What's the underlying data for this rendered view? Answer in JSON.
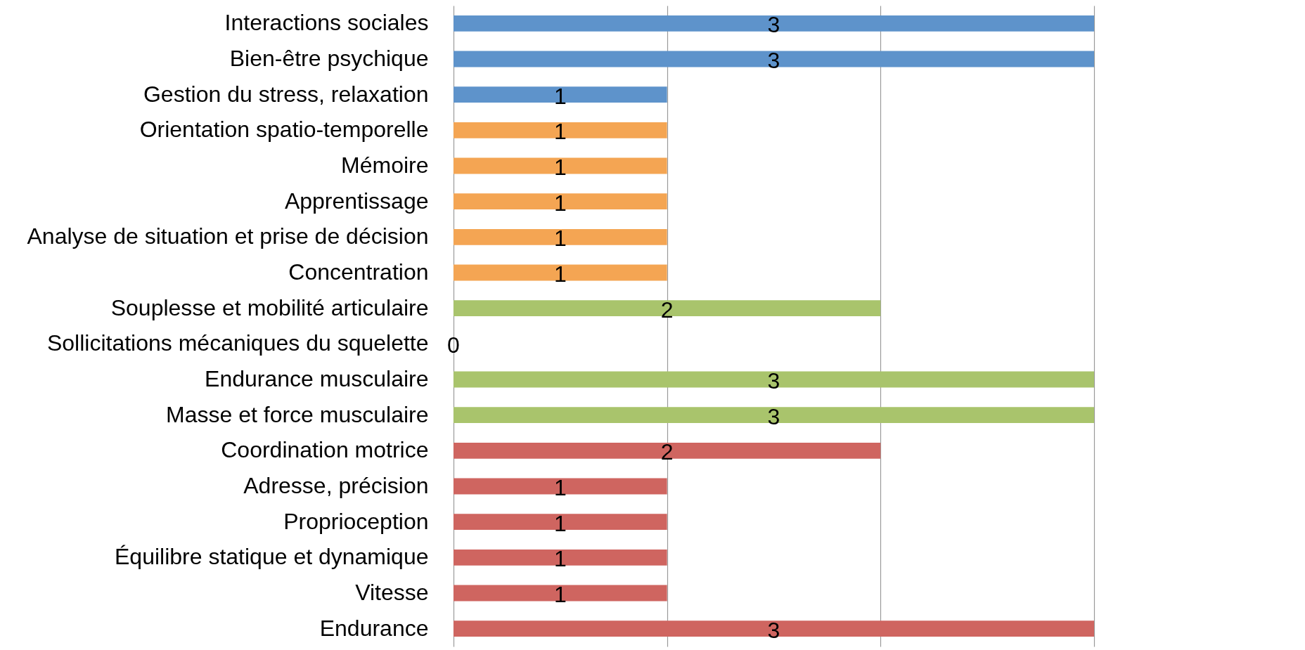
{
  "chart_data": {
    "type": "bar",
    "orientation": "horizontal",
    "categories": [
      "Interactions sociales",
      "Bien-être psychique",
      "Gestion du stress, relaxation",
      "Orientation spatio-temporelle",
      "Mémoire",
      "Apprentissage",
      "Analyse de situation et prise de décision",
      "Concentration",
      "Souplesse et mobilité articulaire",
      "Sollicitations mécaniques du squelette",
      "Endurance musculaire",
      "Masse et force musculaire",
      "Coordination motrice",
      "Adresse, précision",
      "Proprioception",
      "Équilibre statique et dynamique",
      "Vitesse",
      "Endurance"
    ],
    "values": [
      3,
      3,
      1,
      1,
      1,
      1,
      1,
      1,
      2,
      0,
      3,
      3,
      2,
      1,
      1,
      1,
      1,
      3
    ],
    "colors": [
      "#5e93cb",
      "#5e93cb",
      "#5e93cb",
      "#f4a553",
      "#f4a553",
      "#f4a553",
      "#f4a553",
      "#f4a553",
      "#a9c46c",
      "#a9c46c",
      "#a9c46c",
      "#a9c46c",
      "#cf6560",
      "#cf6560",
      "#cf6560",
      "#cf6560",
      "#cf6560",
      "#cf6560"
    ],
    "xlim": [
      0,
      3
    ],
    "xticks": [
      {
        "value": 0,
        "label": null
      },
      {
        "value": 1,
        "label": null
      },
      {
        "value": 2,
        "label": null
      },
      {
        "value": 3,
        "label": null
      }
    ],
    "tick_labels": "y",
    "grid": "x",
    "data_labels": true
  }
}
